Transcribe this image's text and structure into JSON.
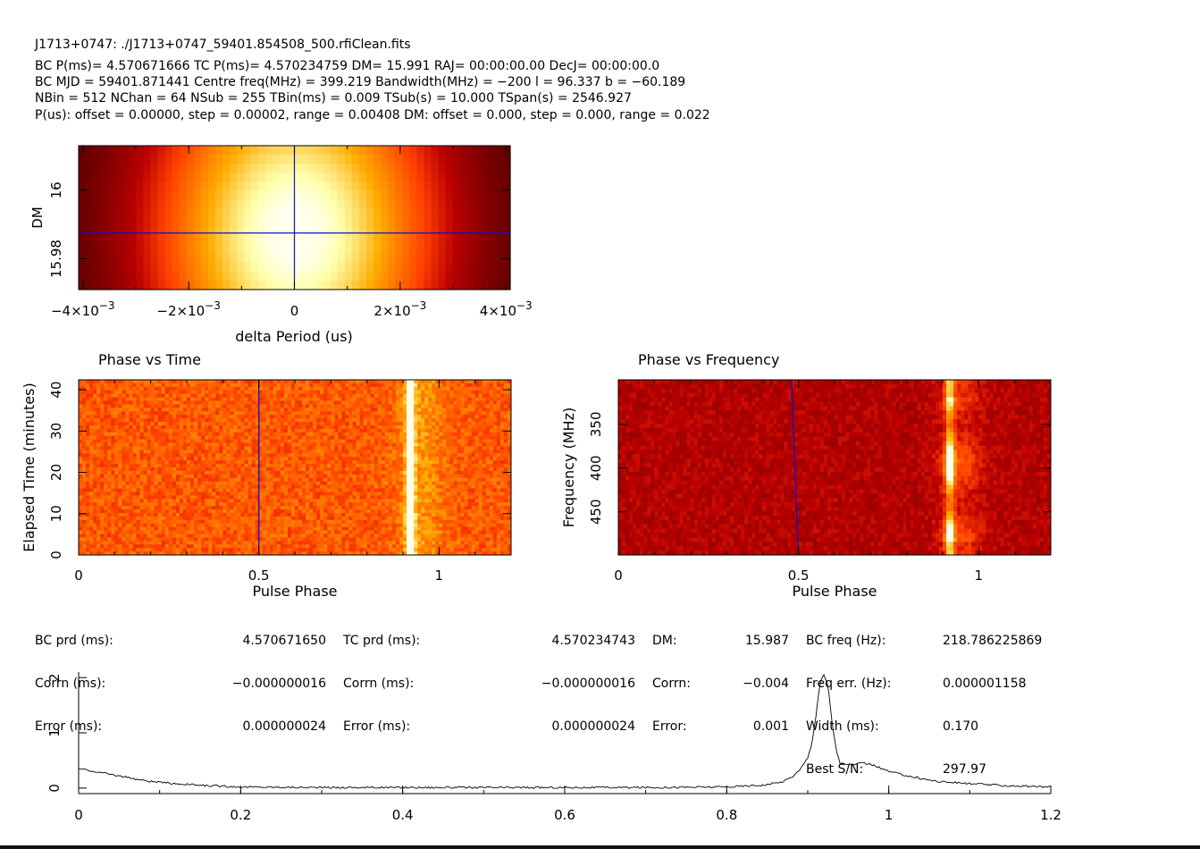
{
  "header": {
    "line1": "J1713+0747: ./J1713+0747_59401.854508_500.rfiClean.fits",
    "line2": "BC P(ms)= 4.570671666 TC P(ms)= 4.570234759 DM= 15.991 RAJ= 00:00:00.00 DecJ= 00:00:00.0",
    "line3": "BC MJD = 59401.871441 Centre freq(MHz) = 399.219 Bandwidth(MHz) = −200 l = 96.337 b = −60.189",
    "line4": "NBin = 512 NChan = 64 NSub = 255 TBin(ms) = 0.009 TSub(s) = 10.000 TSpan(s) = 2546.927",
    "line5": "P(us): offset = 0.00000, step = 0.00002, range = 0.00408 DM: offset = 0.000, step = 0.000, range = 0.022"
  },
  "chart_data": [
    {
      "type": "heatmap",
      "title": "",
      "xlabel": "delta Period (us)",
      "ylabel": "DM",
      "xlim": [
        -0.00408,
        0.00408
      ],
      "ylim": [
        15.971,
        16.013
      ],
      "x_ticks": [
        {
          "value": -0.004,
          "mant": "−4×10",
          "exp": "−3"
        },
        {
          "value": -0.002,
          "mant": "−2×10",
          "exp": "−3"
        },
        {
          "value": 0,
          "mant": "0",
          "exp": ""
        },
        {
          "value": 0.002,
          "mant": "2×10",
          "exp": "−3"
        },
        {
          "value": 0.004,
          "mant": "4×10",
          "exp": "−3"
        }
      ],
      "y_ticks": [
        "16",
        "15.98"
      ],
      "y_tick_values": [
        16,
        15.98
      ],
      "crosshair": {
        "x": 0,
        "y": 15.9875
      },
      "colormap": "heat"
    },
    {
      "type": "heatmap",
      "title": "Phase vs Time",
      "xlabel": "Pulse Phase",
      "ylabel": "Elapsed Time (minutes)",
      "xlim": [
        0,
        1.2
      ],
      "ylim": [
        0,
        42.4
      ],
      "x_ticks": [
        "0",
        "0.5",
        "1"
      ],
      "x_tick_values": [
        0,
        0.5,
        1
      ],
      "y_ticks": [
        "0",
        "10",
        "20",
        "30",
        "40"
      ],
      "y_tick_values": [
        0,
        10,
        20,
        30,
        40
      ],
      "pulse_phase": 0.92,
      "marker_phase": 0.5,
      "colormap": "heat"
    },
    {
      "type": "heatmap",
      "title": "Phase vs Frequency",
      "xlabel": "Pulse Phase",
      "ylabel": "Frequency (MHz)",
      "xlim": [
        0,
        1.2
      ],
      "ylim": [
        499.2,
        299.2
      ],
      "x_ticks": [
        "0",
        "0.5",
        "1"
      ],
      "x_tick_values": [
        0,
        0.5,
        1
      ],
      "y_ticks": [
        "350",
        "400",
        "450"
      ],
      "y_tick_values": [
        350,
        400,
        450
      ],
      "pulse_phase": 0.92,
      "marker_line": [
        [
          0.48,
          299.2
        ],
        [
          0.5,
          499.2
        ]
      ],
      "colormap": "heat"
    },
    {
      "type": "line",
      "title": "",
      "xlabel": "",
      "ylabel": "",
      "xlim": [
        0,
        1.2
      ],
      "ylim": [
        -0.1,
        2.1
      ],
      "x_ticks": [
        "0",
        "0.2",
        "0.4",
        "0.6",
        "0.8",
        "1",
        "1.2"
      ],
      "x_tick_values": [
        0,
        0.2,
        0.4,
        0.6,
        0.8,
        1,
        1.2
      ],
      "y_ticks": [
        "0",
        "1",
        "2"
      ],
      "y_tick_values": [
        0,
        1,
        2
      ],
      "series": [
        {
          "x": [
            0,
            0.02,
            0.05,
            0.08,
            0.1,
            0.15,
            0.2,
            0.3,
            0.4,
            0.5,
            0.6,
            0.7,
            0.8,
            0.85,
            0.87,
            0.88,
            0.89,
            0.9,
            0.905,
            0.91,
            0.915,
            0.92,
            0.925,
            0.93,
            0.935,
            0.94,
            0.95,
            0.97,
            0.98,
            1.0,
            1.03,
            1.06,
            1.1,
            1.15,
            1.2
          ],
          "y": [
            0.35,
            0.3,
            0.22,
            0.14,
            0.1,
            0.05,
            0.02,
            0.01,
            0.01,
            0.01,
            0.01,
            0.01,
            0.02,
            0.06,
            0.12,
            0.2,
            0.32,
            0.55,
            0.8,
            1.3,
            1.9,
            2.05,
            1.85,
            1.2,
            0.7,
            0.45,
            0.42,
            0.45,
            0.42,
            0.3,
            0.2,
            0.12,
            0.08,
            0.04,
            0.02
          ]
        }
      ]
    }
  ],
  "stats": {
    "col1_labels": [
      "BC prd (ms):",
      "Corrn (ms):",
      "Error (ms):"
    ],
    "col1_values": [
      "4.570671650",
      "−0.000000016",
      "0.000000024"
    ],
    "col2_labels": [
      "TC prd (ms):",
      "Corrn (ms):",
      "Error (ms):"
    ],
    "col2_values": [
      "4.570234743",
      "−0.000000016",
      "0.000000024"
    ],
    "col3_labels": [
      "DM:",
      "Corrn:",
      "Error:"
    ],
    "col3_values": [
      "15.987",
      "−0.004",
      "0.001"
    ],
    "col4_labels": [
      "BC freq (Hz):",
      "Freq err. (Hz):",
      "Width (ms):",
      "Best S/N:"
    ],
    "col4_values": [
      "218.786225869",
      "0.000001158",
      "0.170",
      "297.97"
    ]
  }
}
